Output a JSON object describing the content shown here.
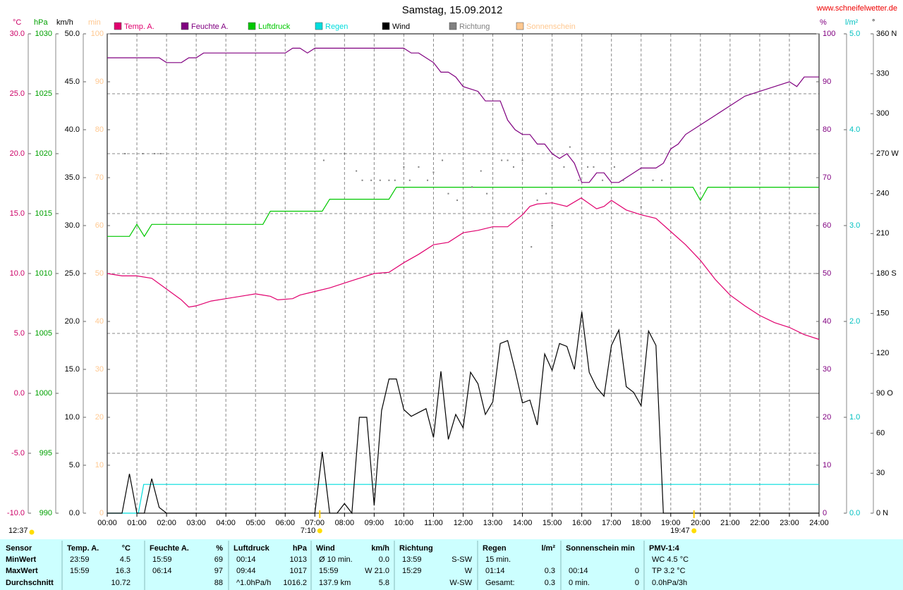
{
  "chart_data": {
    "type": "line",
    "title": "Samstag, 15.09.2012",
    "source": "www.schneifelwetter.de",
    "grid": true,
    "xlim": [
      0,
      24
    ],
    "xticks": [
      {
        "value": 0,
        "label": "00:00"
      },
      {
        "value": 1,
        "label": "01:00"
      },
      {
        "value": 2,
        "label": "02:00"
      },
      {
        "value": 3,
        "label": "03:00"
      },
      {
        "value": 4,
        "label": "04:00"
      },
      {
        "value": 5,
        "label": "05:00"
      },
      {
        "value": 6,
        "label": "06:00"
      },
      {
        "value": 7,
        "label": "07:00"
      },
      {
        "value": 8,
        "label": "08:00"
      },
      {
        "value": 9,
        "label": "09:00"
      },
      {
        "value": 10,
        "label": "10:00"
      },
      {
        "value": 11,
        "label": "11:00"
      },
      {
        "value": 12,
        "label": "12:00"
      },
      {
        "value": 13,
        "label": "13:00"
      },
      {
        "value": 14,
        "label": "14:00"
      },
      {
        "value": 15,
        "label": "15:00"
      },
      {
        "value": 16,
        "label": "16:00"
      },
      {
        "value": 17,
        "label": "17:00"
      },
      {
        "value": 18,
        "label": "18:00"
      },
      {
        "value": 19,
        "label": "19:00"
      },
      {
        "value": 20,
        "label": "20:00"
      },
      {
        "value": 21,
        "label": "21:00"
      },
      {
        "value": 22,
        "label": "22:00"
      },
      {
        "value": 23,
        "label": "23:00"
      },
      {
        "value": 24,
        "label": "24:00"
      }
    ],
    "axes": [
      {
        "label": "°C",
        "color": "#cc0066",
        "side": "left",
        "lim": [
          -10,
          30
        ],
        "ticks": [
          {
            "value": -10,
            "label": "-10.0"
          },
          {
            "value": -5,
            "label": "-5.0"
          },
          {
            "value": 0,
            "label": "0.0"
          },
          {
            "value": 5,
            "label": "5.0"
          },
          {
            "value": 10,
            "label": "10.0"
          },
          {
            "value": 15,
            "label": "15.0"
          },
          {
            "value": 20,
            "label": "20.0"
          },
          {
            "value": 25,
            "label": "25.0"
          },
          {
            "value": 30,
            "label": "30.0"
          }
        ]
      },
      {
        "label": "hPa",
        "color": "#00a000",
        "side": "left",
        "lim": [
          990,
          1030
        ],
        "ticks": [
          990,
          995,
          1000,
          1005,
          1010,
          1015,
          1020,
          1025,
          1030
        ]
      },
      {
        "label": "km/h",
        "color": "#000000",
        "side": "left",
        "lim": [
          0,
          50
        ],
        "ticks": [
          {
            "value": 0,
            "label": "0.0"
          },
          {
            "value": 5,
            "label": "5.0"
          },
          {
            "value": 10,
            "label": "10.0"
          },
          {
            "value": 15,
            "label": "15.0"
          },
          {
            "value": 20,
            "label": "20.0"
          },
          {
            "value": 25,
            "label": "25.0"
          },
          {
            "value": 30,
            "label": "30.0"
          },
          {
            "value": 35,
            "label": "35.0"
          },
          {
            "value": 40,
            "label": "40.0"
          },
          {
            "value": 45,
            "label": "45.0"
          },
          {
            "value": 50,
            "label": "50.0"
          }
        ]
      },
      {
        "label": "min",
        "color": "#ffc890",
        "side": "left",
        "lim": [
          0,
          100
        ],
        "ticks": [
          0,
          10,
          20,
          30,
          40,
          50,
          60,
          70,
          80,
          90,
          100
        ]
      },
      {
        "label": "%",
        "color": "#800080",
        "side": "right",
        "lim": [
          0,
          100
        ],
        "ticks": [
          0,
          10,
          20,
          30,
          40,
          50,
          60,
          70,
          80,
          90,
          100
        ]
      },
      {
        "label": "l/m²",
        "color": "#00c0c0",
        "side": "right",
        "lim": [
          0,
          5
        ],
        "ticks": [
          {
            "value": 0,
            "label": "0.0"
          },
          {
            "value": 1,
            "label": "1.0"
          },
          {
            "value": 2,
            "label": "2.0"
          },
          {
            "value": 3,
            "label": "3.0"
          },
          {
            "value": 4,
            "label": "4.0"
          },
          {
            "value": 5,
            "label": "5.0"
          }
        ]
      },
      {
        "label": "°",
        "color": "#000000",
        "side": "right",
        "lim": [
          0,
          360
        ],
        "ticks": [
          {
            "value": 0,
            "label": "0 N"
          },
          30,
          60,
          {
            "value": 90,
            "label": "90 O"
          },
          120,
          150,
          {
            "value": 180,
            "label": "180 S"
          },
          210,
          240,
          {
            "value": 270,
            "label": "270 W"
          },
          300,
          330,
          {
            "value": 360,
            "label": "360 N"
          }
        ]
      }
    ],
    "series": [
      {
        "name": "Temp. A.",
        "color": "#e0006e",
        "axis": 0,
        "kind": "line",
        "x": [
          0,
          0.5,
          1,
          1.5,
          2,
          2.5,
          2.75,
          3,
          3.5,
          4,
          4.5,
          5,
          5.5,
          5.75,
          6.25,
          6.5,
          7,
          7.5,
          8,
          8.5,
          9,
          9.5,
          10,
          10.5,
          11,
          11.5,
          12,
          12.5,
          13,
          13.5,
          14,
          14.25,
          14.5,
          15,
          15.5,
          15.98,
          16.5,
          16.75,
          17,
          17.5,
          18,
          18.5,
          19,
          19.5,
          20,
          20.5,
          21,
          21.5,
          22,
          22.5,
          23,
          23.5,
          24
        ],
        "values": [
          10.0,
          9.8,
          9.8,
          9.6,
          8.7,
          7.8,
          7.2,
          7.3,
          7.7,
          7.9,
          8.1,
          8.3,
          8.1,
          7.8,
          7.9,
          8.2,
          8.5,
          8.8,
          9.2,
          9.6,
          10.0,
          10.1,
          10.9,
          11.6,
          12.4,
          12.6,
          13.4,
          13.6,
          13.9,
          13.9,
          14.9,
          15.6,
          15.8,
          15.9,
          15.6,
          16.3,
          15.4,
          15.6,
          16.1,
          15.3,
          14.9,
          14.6,
          13.5,
          12.4,
          11.1,
          9.5,
          8.2,
          7.3,
          6.5,
          5.9,
          5.5,
          4.9,
          4.5
        ]
      },
      {
        "name": "Feuchte A.",
        "color": "#800080",
        "axis": 4,
        "kind": "line",
        "x": [
          0,
          1.75,
          2,
          2.5,
          2.75,
          3,
          3.25,
          6,
          6.25,
          6.5,
          6.75,
          7,
          10,
          10.25,
          10.5,
          11,
          11.25,
          11.5,
          11.75,
          12,
          12.5,
          12.75,
          13.25,
          13.5,
          13.75,
          14,
          14.25,
          14.5,
          14.75,
          15,
          15.25,
          15.5,
          15.75,
          16,
          16.25,
          16.5,
          16.75,
          17,
          17.25,
          17.5,
          18,
          18.5,
          18.75,
          19,
          19.25,
          19.5,
          20,
          20.5,
          21,
          21.5,
          22,
          22.5,
          23,
          23.25,
          23.5,
          24
        ],
        "values": [
          95,
          95,
          94,
          94,
          95,
          95,
          96,
          96,
          97,
          97,
          96,
          97,
          97,
          96,
          96,
          94,
          92,
          92,
          91,
          89,
          88,
          86,
          86,
          82,
          80,
          79,
          79,
          77,
          77,
          75,
          74,
          75,
          73,
          69,
          69,
          71,
          71,
          69,
          69,
          70,
          72,
          72,
          73,
          76,
          77,
          79,
          81,
          83,
          85,
          87,
          88,
          89,
          90,
          89,
          91,
          91
        ]
      },
      {
        "name": "Luftdruck",
        "color": "#00c800",
        "axis": 1,
        "kind": "line",
        "x": [
          0,
          0.75,
          1,
          1.25,
          1.5,
          5.25,
          5.5,
          7.25,
          7.5,
          9.5,
          9.75,
          19.75,
          20,
          20.25,
          24
        ],
        "values": [
          1013.1,
          1013.1,
          1014.1,
          1013.1,
          1014.1,
          1014.1,
          1015.2,
          1015.2,
          1016.2,
          1016.2,
          1017.2,
          1017.2,
          1016.1,
          1017.2,
          1017.2
        ]
      },
      {
        "name": "Regen",
        "color": "#00dddd",
        "axis": 5,
        "kind": "line",
        "x": [
          0,
          1.05,
          1.23,
          24
        ],
        "values": [
          0,
          0,
          0.3,
          0.3
        ]
      },
      {
        "name": "Wind",
        "color": "#000000",
        "axis": 2,
        "kind": "line",
        "x": [
          0,
          0.5,
          0.75,
          1,
          1.25,
          1.5,
          1.75,
          2,
          7,
          7.25,
          7.5,
          7.75,
          8,
          8.25,
          8.5,
          8.75,
          9,
          9.25,
          9.5,
          9.75,
          10,
          10.25,
          10.5,
          10.75,
          11,
          11.25,
          11.5,
          11.75,
          12,
          12.25,
          12.5,
          12.75,
          13,
          13.25,
          13.5,
          13.75,
          14,
          14.25,
          14.5,
          14.75,
          15,
          15.25,
          15.5,
          15.75,
          16,
          16.25,
          16.5,
          16.75,
          17,
          17.25,
          17.5,
          17.75,
          18,
          18.25,
          18.5,
          18.75,
          24
        ],
        "values": [
          0,
          0,
          4.1,
          0,
          0,
          3.6,
          0.6,
          0,
          0,
          6.4,
          0,
          0,
          1.0,
          0,
          10.0,
          10.0,
          0.8,
          10.7,
          14.0,
          14.0,
          10.8,
          10.1,
          10.5,
          10.9,
          7.9,
          14.8,
          7.7,
          10.3,
          8.9,
          14.7,
          13.5,
          10.3,
          11.6,
          17.7,
          18.0,
          14.9,
          11.5,
          11.8,
          9.2,
          16.6,
          14.9,
          17.7,
          17.4,
          15.0,
          21.0,
          14.7,
          13.1,
          12.2,
          17.5,
          19.1,
          13.2,
          12.6,
          11.2,
          19.0,
          17.5,
          0,
          0
        ]
      },
      {
        "name": "Richtung",
        "color": "#808080",
        "axis": 6,
        "kind": "dots",
        "x": [
          0.6,
          1.2,
          1.6,
          1.8,
          7.3,
          8.0,
          8.4,
          8.6,
          8.9,
          9.2,
          9.5,
          9.7,
          10.0,
          10.2,
          10.5,
          10.8,
          11.0,
          11.3,
          11.5,
          11.8,
          12.3,
          12.6,
          12.8,
          13.3,
          13.5,
          13.7,
          14.0,
          14.3,
          14.5,
          14.8,
          15.0,
          15.4,
          15.6,
          15.9,
          16.2,
          16.4,
          16.7,
          17.1,
          17.4,
          18.0,
          18.4,
          18.7
        ],
        "values": [
          270,
          270,
          270,
          270,
          265,
          270,
          257,
          250,
          250,
          250,
          250,
          250,
          260,
          250,
          260,
          250,
          256,
          265,
          240,
          235,
          245,
          257,
          240,
          265,
          265,
          260,
          265,
          200,
          235,
          240,
          216,
          260,
          275,
          250,
          260,
          260,
          250,
          260,
          250,
          230,
          250,
          250
        ]
      },
      {
        "name": "Sonnenschein",
        "color": "#ffc890",
        "axis": 3,
        "kind": "line",
        "x": [],
        "values": []
      }
    ],
    "annotations": [
      {
        "x": 7.1667,
        "label": "7:10"
      },
      {
        "x": 19.783,
        "label": "19:47"
      }
    ],
    "footnote": "12:37"
  },
  "table": {
    "corner": "Sensor",
    "columns": [
      [
        "Temp. A.",
        "°C"
      ],
      [
        "Feuchte A.",
        "%"
      ],
      [
        "Luftdruck",
        "hPa"
      ],
      [
        "Wind",
        "km/h"
      ],
      [
        "Richtung",
        null
      ],
      [
        "Regen",
        "l/m²"
      ],
      [
        "Sonnenschein min",
        null
      ],
      [
        "PMV-1:4",
        null
      ]
    ],
    "rows": [
      {
        "label": "MinWert",
        "cells": [
          [
            "23:59",
            "4.5"
          ],
          [
            "15:59",
            "69"
          ],
          [
            "00:14",
            "1013"
          ],
          [
            "Ø 10 min.",
            "0.0"
          ],
          [
            "13:59",
            "S-SW"
          ],
          [
            "15 min.",
            null
          ],
          [
            null,
            null
          ],
          [
            "WC 4.5 °C",
            null
          ]
        ]
      },
      {
        "label": "MaxWert",
        "cells": [
          [
            "15:59",
            "16.3"
          ],
          [
            "06:14",
            "97"
          ],
          [
            "09:44",
            "1017"
          ],
          [
            "15:59",
            "W 21.0"
          ],
          [
            "15:29",
            "W"
          ],
          [
            "01:14",
            "0.3"
          ],
          [
            "00:14",
            "0"
          ],
          [
            "TP 3.2 °C",
            null
          ]
        ]
      },
      {
        "label": "Durchschnitt",
        "cells": [
          [
            null,
            "10.72"
          ],
          [
            null,
            "88"
          ],
          [
            "^1.0hPa/h",
            "1016.2"
          ],
          [
            "137.9 km",
            "5.8"
          ],
          [
            null,
            "W-SW"
          ],
          [
            "Gesamt:",
            "0.3"
          ],
          [
            "0 min.",
            "0"
          ],
          [
            "0.0hPa/3h",
            null
          ]
        ]
      }
    ]
  }
}
